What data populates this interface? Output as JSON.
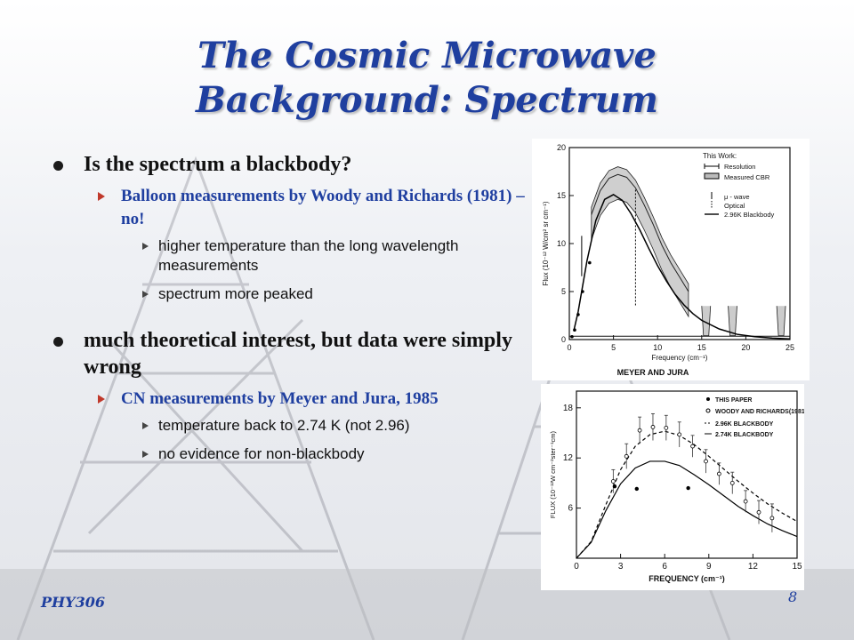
{
  "slide": {
    "title_line1": "The Cosmic Microwave",
    "title_line2": "Background: Spectrum",
    "footer_left": "PHY306",
    "page_number": "8"
  },
  "bullets": [
    {
      "text": "Is the spectrum a blackbody?",
      "sub": [
        {
          "text": "Balloon measurements by Woody and Richards (1981) – no!",
          "sub": [
            "higher temperature than the long wavelength measurements",
            "spectrum more peaked"
          ]
        }
      ]
    },
    {
      "text": "much theoretical interest, but data were simply wrong",
      "sub": [
        {
          "text": "CN measurements by Meyer and Jura, 1985",
          "sub": [
            "temperature back to 2.74 K (not 2.96)",
            "no evidence for non-blackbody"
          ]
        }
      ]
    }
  ],
  "chart_data": [
    {
      "type": "line",
      "caption": "MEYER AND JURA",
      "xlabel": "Frequency (cm⁻¹)",
      "ylabel": "Flux (10⁻¹² W/cm² sr cm⁻¹)",
      "xlim": [
        0,
        25
      ],
      "ylim": [
        0,
        20
      ],
      "xticks": [
        0,
        5,
        10,
        15,
        20,
        25
      ],
      "yticks": [
        0,
        5,
        10,
        15,
        20
      ],
      "legend_title": "This Work:",
      "legend": [
        "Resolution",
        "Measured CBR",
        "μ - wave",
        "Optical",
        "2.96K Blackbody"
      ],
      "legend_position": "top-right",
      "series": [
        {
          "name": "2.96K Blackbody",
          "x": [
            0.5,
            1,
            2,
            3,
            4,
            5,
            6,
            7,
            8,
            9,
            10,
            11,
            12,
            13,
            14,
            15,
            17,
            19,
            21,
            23,
            25
          ],
          "y": [
            0.9,
            2.9,
            8.2,
            12.4,
            14.6,
            15.1,
            14.5,
            13.1,
            11.4,
            9.5,
            7.7,
            6.1,
            4.7,
            3.6,
            2.7,
            2.0,
            1.1,
            0.55,
            0.3,
            0.15,
            0.07
          ]
        },
        {
          "name": "Measured CBR",
          "x": [
            2.5,
            3.5,
            4.5,
            5.5,
            6.5,
            7.5,
            8.5,
            9.5,
            10.5,
            11.5,
            12.5,
            13.5
          ],
          "y": [
            13.0,
            15.5,
            16.8,
            17.2,
            16.9,
            15.8,
            14.0,
            12.0,
            9.8,
            8.0,
            6.5,
            5.0
          ]
        }
      ],
      "points": {
        "name": "μ - wave",
        "x": [
          0.3,
          0.6,
          1.0,
          1.5,
          2.3
        ],
        "y": [
          0.3,
          1.0,
          2.6,
          5.0,
          8.0
        ]
      }
    },
    {
      "type": "line",
      "xlabel": "FREQUENCY (cm⁻¹)",
      "ylabel": "FLUX (10⁻¹²W cm⁻²ster⁻¹cm)",
      "xlim": [
        0,
        15
      ],
      "ylim": [
        0,
        20
      ],
      "xticks": [
        0,
        3,
        6,
        9,
        12,
        15
      ],
      "yticks": [
        6,
        12,
        18
      ],
      "legend": [
        "THIS PAPER",
        "WOODY AND RICHARDS(1981)",
        "2.96K BLACKBODY",
        "2.74K BLACKBODY"
      ],
      "legend_position": "top-right",
      "series": [
        {
          "name": "2.96K BLACKBODY",
          "x": [
            0,
            1,
            2,
            3,
            4,
            5,
            6,
            7,
            8,
            9,
            10,
            11,
            12,
            13,
            14,
            15
          ],
          "y": [
            0,
            2.0,
            6.4,
            10.6,
            13.4,
            14.8,
            15.2,
            14.7,
            13.6,
            12.2,
            10.7,
            9.2,
            7.8,
            6.5,
            5.4,
            4.4
          ]
        },
        {
          "name": "2.74K BLACKBODY",
          "x": [
            0,
            1,
            2,
            3,
            4,
            5,
            6,
            7,
            8,
            9,
            10,
            11,
            12,
            13,
            14,
            15
          ],
          "y": [
            0,
            1.9,
            5.7,
            8.9,
            10.8,
            11.6,
            11.6,
            11.1,
            10.0,
            8.8,
            7.5,
            6.2,
            5.1,
            4.1,
            3.3,
            2.6
          ]
        }
      ],
      "this_paper": {
        "x": [
          2.6,
          4.1,
          7.6
        ],
        "y": [
          8.6,
          8.3,
          8.4
        ]
      },
      "woody_richards": {
        "x": [
          2.5,
          3.4,
          4.3,
          5.2,
          6.1,
          7.0,
          7.9,
          8.8,
          9.7,
          10.6,
          11.5,
          12.4,
          13.3
        ],
        "y": [
          9.2,
          12.2,
          15.3,
          15.7,
          15.6,
          14.8,
          13.4,
          11.6,
          10.1,
          9.0,
          6.8,
          5.5,
          4.8
        ],
        "err": [
          1.4,
          1.5,
          1.6,
          1.6,
          1.5,
          1.5,
          1.3,
          1.4,
          1.3,
          1.3,
          1.3,
          1.4,
          1.7
        ]
      }
    }
  ]
}
